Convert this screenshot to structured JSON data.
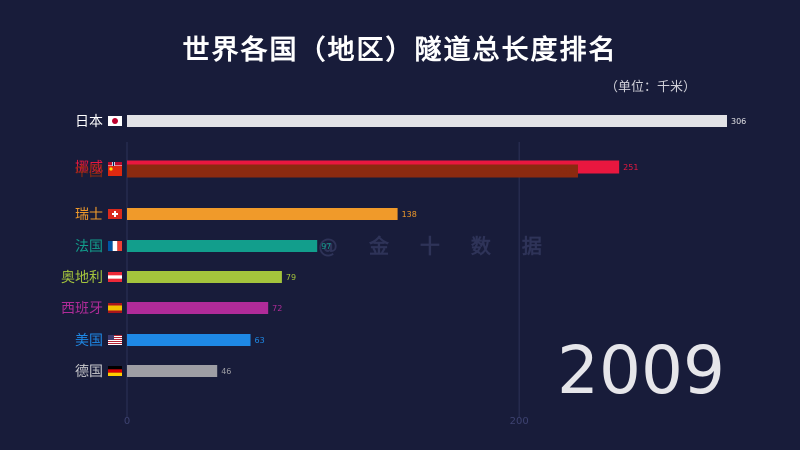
{
  "header": {
    "title": "世界各国（地区）隧道总长度排名",
    "unit": "（单位：千米）"
  },
  "watermark": "@ 金 十 数 据",
  "year": "2009",
  "chart_data": {
    "type": "bar",
    "orientation": "horizontal",
    "xlim": [
      0,
      306
    ],
    "x_ticks": [
      0,
      200
    ],
    "grid": true,
    "categories": [
      "日本",
      "挪威",
      "中国",
      "瑞士",
      "法国",
      "奥地利",
      "西班牙",
      "美国",
      "德国"
    ],
    "values": [
      306,
      251,
      230,
      138,
      97,
      79,
      72,
      63,
      46
    ],
    "value_labels": [
      "306",
      "251",
      "230",
      "138",
      "97",
      "79",
      "72",
      "63",
      "46"
    ],
    "colors": [
      "#e2e2e6",
      "#e8173f",
      "#8b2a10",
      "#f09a2a",
      "#129e8c",
      "#a4c43c",
      "#b02b99",
      "#1e88e5",
      "#9e9ea4"
    ],
    "label_colors": [
      "#ffffff",
      "#e8173f",
      "#8b2a10",
      "#f09a2a",
      "#129e8c",
      "#a4c43c",
      "#b02b99",
      "#1e88e5",
      "#c8c8cc"
    ],
    "flags": [
      "japan-flag-icon",
      "norway-flag-icon",
      "china-flag-icon",
      "switzerland-flag-icon",
      "france-flag-icon",
      "austria-flag-icon",
      "spain-flag-icon",
      "usa-flag-icon",
      "germany-flag-icon"
    ]
  }
}
